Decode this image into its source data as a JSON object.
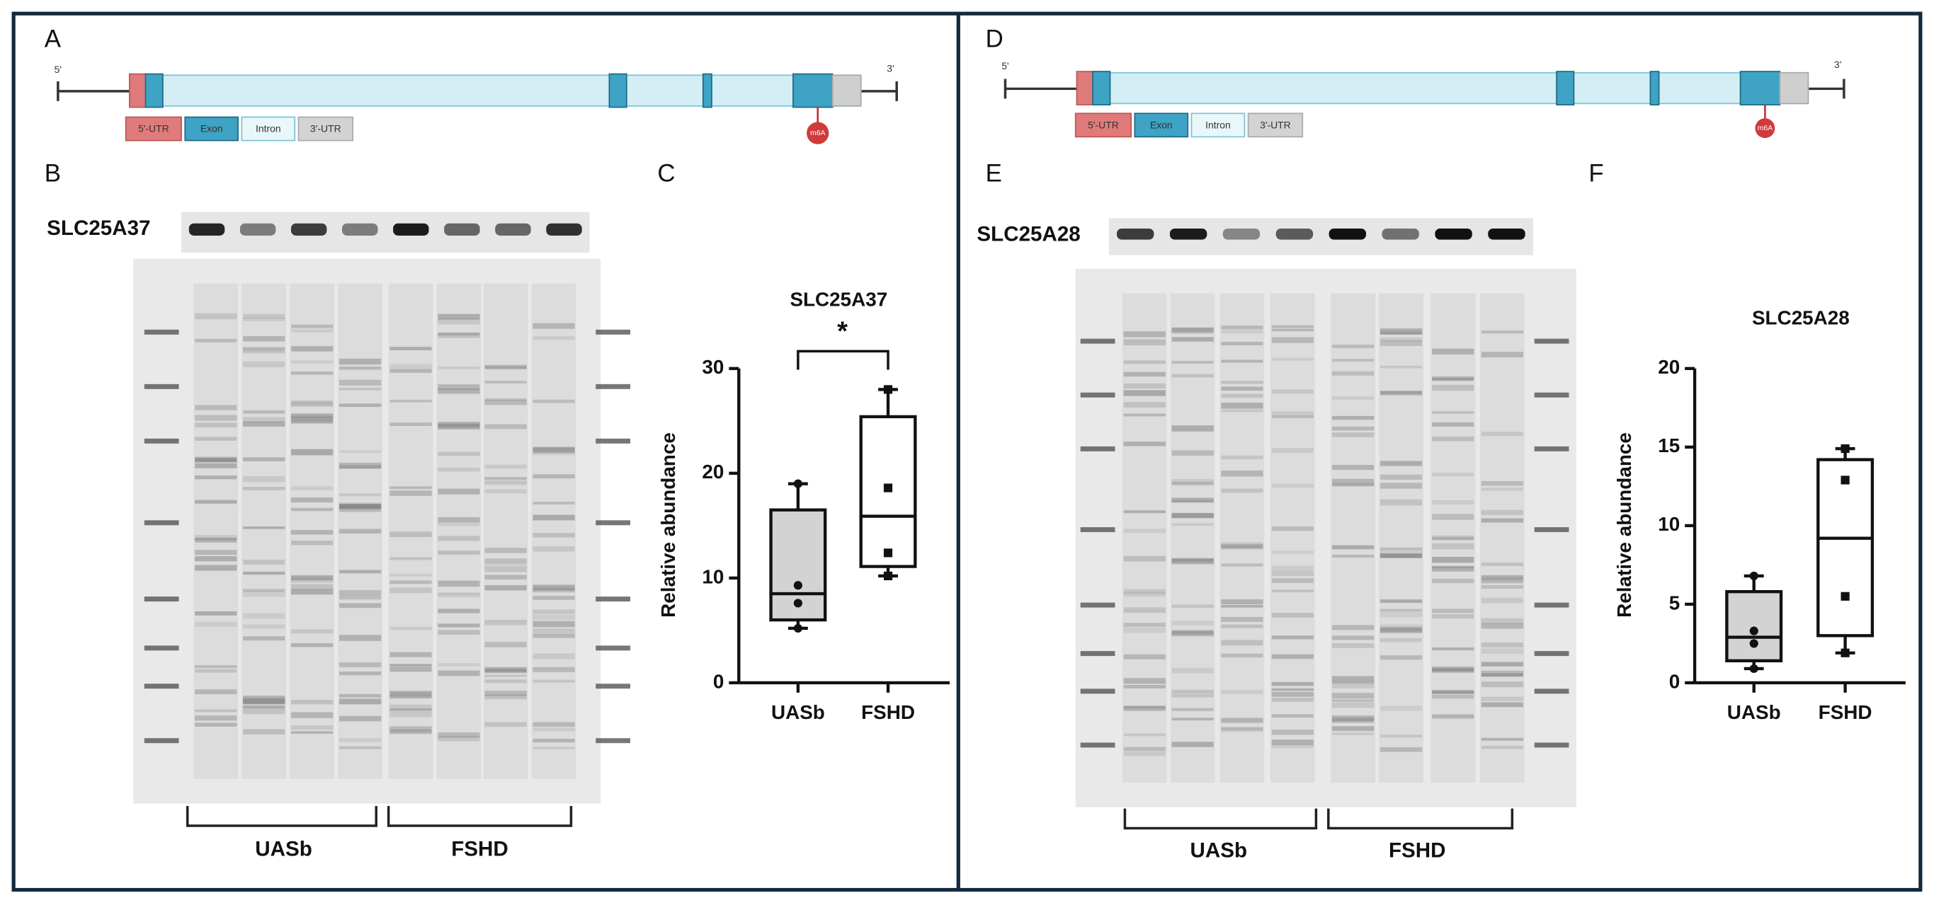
{
  "panel_labels": [
    "A",
    "B",
    "C",
    "D",
    "E",
    "F"
  ],
  "gene_diagrams": [
    {
      "five_prime": "5'",
      "three_prime": "3'",
      "legend": [
        "5'-UTR",
        "Exon",
        "Intron",
        "3'-UTR"
      ],
      "modification": "m6A"
    },
    {
      "five_prime": "5'",
      "three_prime": "3'",
      "legend": [
        "5'-UTR",
        "Exon",
        "Intron",
        "3'-UTR"
      ],
      "modification": "m6A"
    }
  ],
  "blots": [
    {
      "protein": "SLC25A37",
      "groups": [
        "UASb",
        "FSHD"
      ]
    },
    {
      "protein": "SLC25A28",
      "groups": [
        "UASb",
        "FSHD"
      ]
    }
  ],
  "chart_data": [
    {
      "type": "box",
      "title": "SLC25A37",
      "annotation": "*",
      "y_label": "Relative abundance",
      "categories": [
        "UASb",
        "FSHD"
      ],
      "colors": [
        "#d3d3d3",
        "#ffffff"
      ],
      "markers": [
        "circle",
        "square"
      ],
      "ylim": [
        0,
        30
      ],
      "yticks": [
        0,
        10,
        20,
        30
      ],
      "boxes": [
        {
          "min": 5.2,
          "q1": 6,
          "median": 8.5,
          "q3": 16.5,
          "max": 19,
          "points": [
            19,
            9.3,
            7.6,
            5.2
          ]
        },
        {
          "min": 10.2,
          "q1": 11.1,
          "median": 15.9,
          "q3": 25.4,
          "max": 28,
          "points": [
            28,
            18.6,
            12.4,
            10.2
          ]
        }
      ]
    },
    {
      "type": "box",
      "title": "SLC25A28",
      "y_label": "Relative abundance",
      "categories": [
        "UASb",
        "FSHD"
      ],
      "colors": [
        "#d3d3d3",
        "#ffffff"
      ],
      "markers": [
        "circle",
        "square"
      ],
      "ylim": [
        0,
        20
      ],
      "yticks": [
        0,
        5,
        10,
        15,
        20
      ],
      "boxes": [
        {
          "min": 0.9,
          "q1": 1.4,
          "median": 2.9,
          "q3": 5.8,
          "max": 6.8,
          "points": [
            6.8,
            3.3,
            2.5,
            0.9
          ]
        },
        {
          "min": 1.9,
          "q1": 3,
          "median": 9.2,
          "q3": 14.2,
          "max": 14.9,
          "points": [
            14.9,
            12.9,
            5.5,
            1.9
          ]
        }
      ]
    }
  ]
}
